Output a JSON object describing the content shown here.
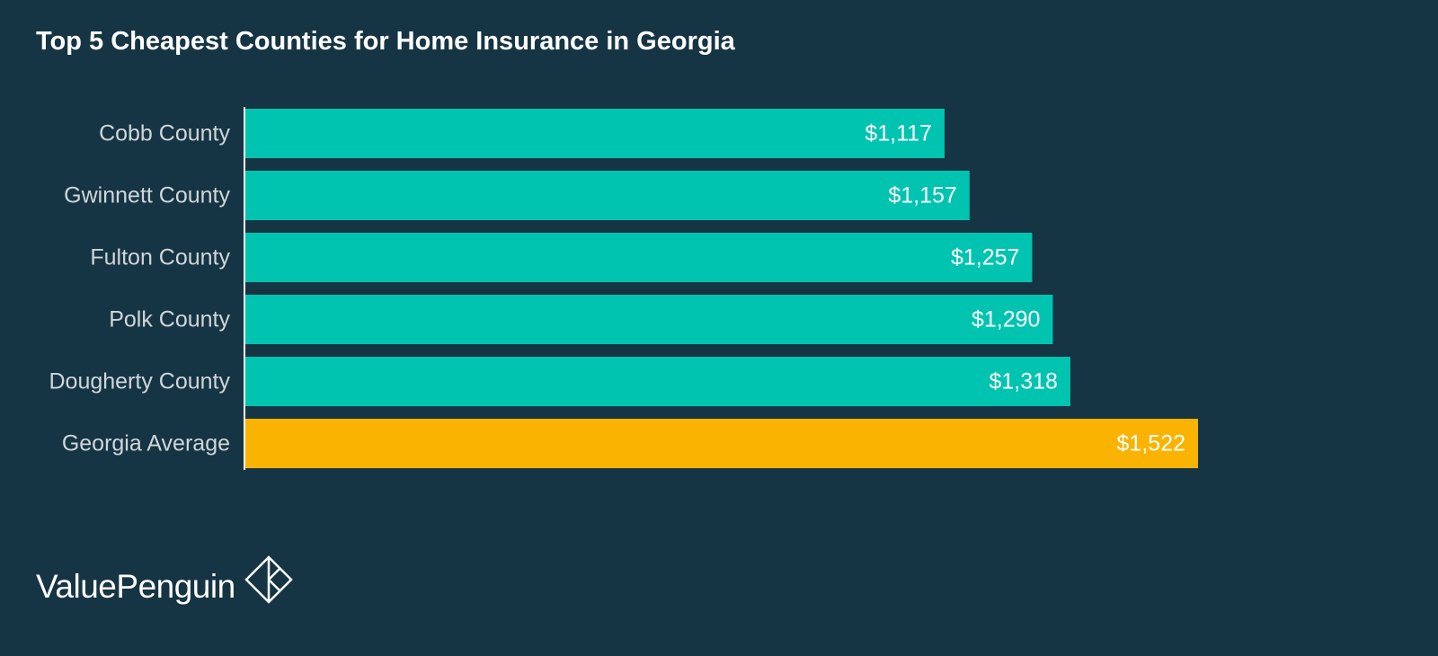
{
  "chart_data": {
    "type": "bar",
    "orientation": "horizontal",
    "title": "Top 5 Cheapest Counties for Home Insurance in Georgia",
    "categories": [
      "Cobb County",
      "Gwinnett County",
      "Fulton County",
      "Polk County",
      "Dougherty County",
      "Georgia Average"
    ],
    "values": [
      1117,
      1157,
      1257,
      1290,
      1318,
      1522
    ],
    "value_labels": [
      "$1,117",
      "$1,157",
      "$1,257",
      "$1,290",
      "$1,318",
      "$1,522"
    ],
    "colors": [
      "#00c4b0",
      "#00c4b0",
      "#00c4b0",
      "#00c4b0",
      "#00c4b0",
      "#f9b300"
    ],
    "xlabel": "",
    "ylabel": "",
    "xlim": [
      0,
      1522
    ],
    "grid": false,
    "legend": "none"
  },
  "brand": {
    "name": "ValuePenguin",
    "logo_icon": "diamond-logo-icon"
  },
  "theme": {
    "background": "#163544",
    "axis_line": "#ffffff"
  }
}
